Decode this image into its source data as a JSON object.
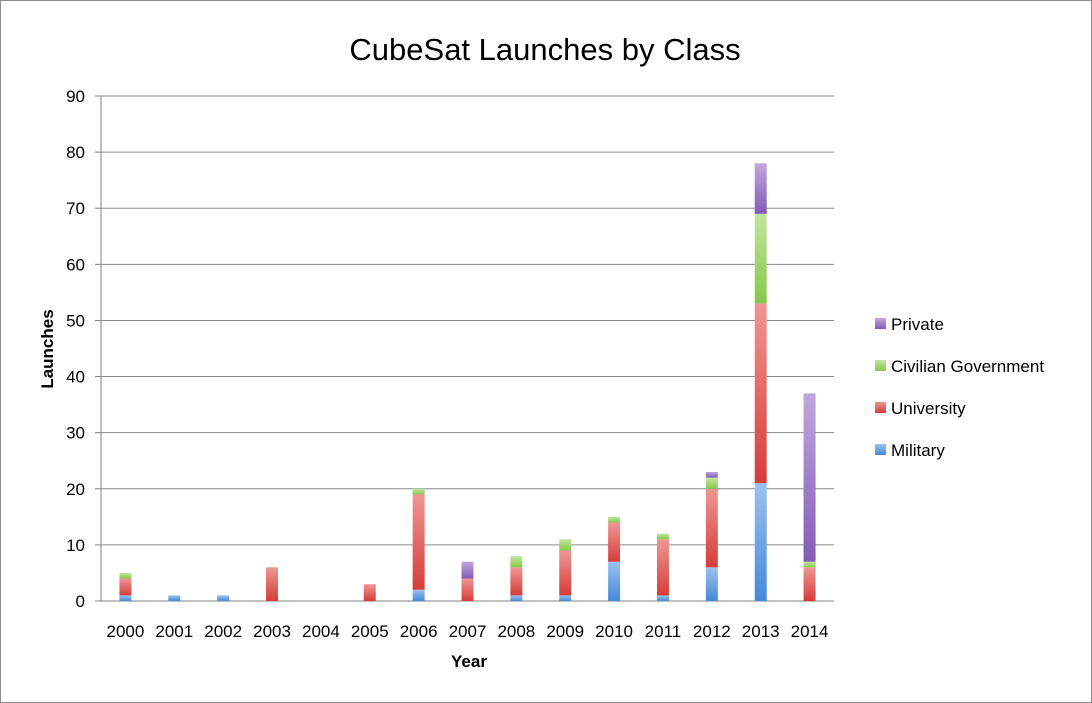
{
  "chart_data": {
    "type": "bar",
    "stacked": true,
    "title": "CubeSat Launches by Class",
    "xlabel": "Year",
    "ylabel": "Launches",
    "ylim": [
      0,
      90
    ],
    "yticks": [
      0,
      10,
      20,
      30,
      40,
      50,
      60,
      70,
      80,
      90
    ],
    "grid": true,
    "legend_position": "right",
    "categories": [
      "2000",
      "2001",
      "2002",
      "2003",
      "2004",
      "2005",
      "2006",
      "2007",
      "2008",
      "2009",
      "2010",
      "2011",
      "2012",
      "2013",
      "2014"
    ],
    "series": [
      {
        "name": "Military",
        "color": "#4a90e2",
        "values": [
          1,
          1,
          1,
          0,
          0,
          0,
          2,
          0,
          1,
          1,
          7,
          1,
          6,
          21,
          0
        ]
      },
      {
        "name": "University",
        "color": "#e0403c",
        "values": [
          3,
          0,
          0,
          6,
          0,
          3,
          17,
          4,
          5,
          8,
          7,
          10,
          14,
          32,
          6
        ]
      },
      {
        "name": "Civilian Government",
        "color": "#8fd14f",
        "values": [
          1,
          0,
          0,
          0,
          0,
          0,
          1,
          0,
          2,
          2,
          1,
          1,
          2,
          16,
          1
        ]
      },
      {
        "name": "Private",
        "color": "#8c5fc0",
        "values": [
          0,
          0,
          0,
          0,
          0,
          0,
          0,
          3,
          0,
          0,
          0,
          0,
          1,
          9,
          30
        ]
      }
    ]
  }
}
